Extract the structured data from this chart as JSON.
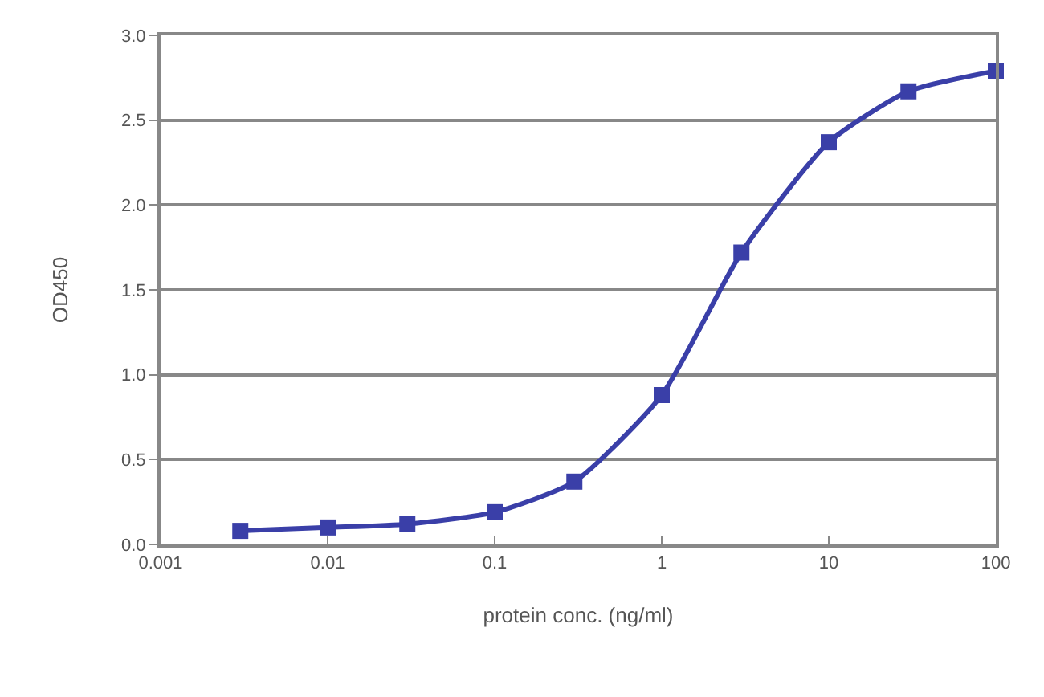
{
  "chart_data": {
    "type": "line",
    "xlabel": "protein conc. (ng/ml)",
    "ylabel": "OD450",
    "x": [
      0.003,
      0.01,
      0.03,
      0.1,
      0.3,
      1,
      3,
      10,
      30,
      100
    ],
    "series": [
      {
        "color": "#3a3fa8",
        "values": [
          0.08,
          0.1,
          0.12,
          0.19,
          0.37,
          0.88,
          1.72,
          2.37,
          2.67,
          2.79
        ]
      }
    ],
    "log": "x",
    "xlim": [
      0.001,
      100
    ],
    "xticks": [
      0.001,
      0.01,
      0.1,
      1,
      10,
      100
    ],
    "ylim": [
      0,
      3
    ],
    "yticks": [
      {
        "value": 0,
        "label": "0.0"
      },
      {
        "value": 0.5,
        "label": "0.5"
      },
      {
        "value": 1,
        "label": "1.0"
      },
      {
        "value": 1.5,
        "label": "1.5"
      },
      {
        "value": 2,
        "label": "2.0"
      },
      {
        "value": 2.5,
        "label": "2.5"
      },
      {
        "value": 3,
        "label": "3.0"
      }
    ],
    "grid": "y",
    "marker": "square",
    "line_style": "solid",
    "legend": false
  }
}
